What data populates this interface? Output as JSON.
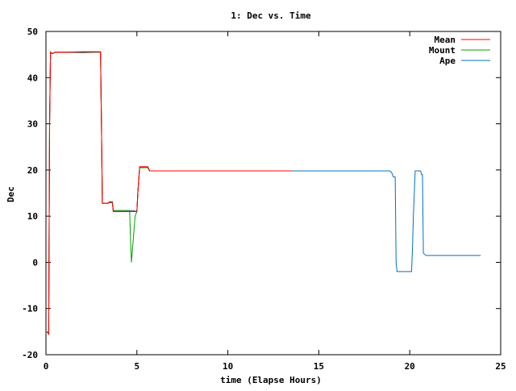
{
  "chart_data": {
    "type": "line",
    "title": "1: Dec vs. Time",
    "xlabel": "time (Elapse Hours)",
    "ylabel": "Dec",
    "xlim": [
      0,
      25
    ],
    "ylim": [
      -20,
      50
    ],
    "xticks": [
      0,
      5,
      10,
      15,
      20,
      25
    ],
    "yticks": [
      -20,
      -10,
      0,
      10,
      20,
      30,
      40,
      50
    ],
    "grid": false,
    "legend_position": "top-right",
    "series": [
      {
        "name": "Mean",
        "color": "#ff0000",
        "points": [
          [
            0.05,
            -15
          ],
          [
            0.15,
            -15.5
          ],
          [
            0.2,
            30
          ],
          [
            0.25,
            45.5
          ],
          [
            0.35,
            45.2
          ],
          [
            0.5,
            45.5
          ],
          [
            1,
            45.5
          ],
          [
            2,
            45.6
          ],
          [
            2.9,
            45.6
          ],
          [
            3.0,
            45.6
          ],
          [
            3.05,
            30
          ],
          [
            3.1,
            12.8
          ],
          [
            3.4,
            12.8
          ],
          [
            3.5,
            13.1
          ],
          [
            3.65,
            13.1
          ],
          [
            3.7,
            11
          ],
          [
            4.8,
            11
          ],
          [
            5.0,
            11
          ],
          [
            5.05,
            15
          ],
          [
            5.15,
            20.7
          ],
          [
            5.6,
            20.7
          ],
          [
            5.7,
            19.8
          ],
          [
            13.5,
            19.8
          ]
        ]
      },
      {
        "name": "Mount",
        "color": "#00a000",
        "points": [
          [
            0.05,
            -15
          ],
          [
            0.15,
            -15.5
          ],
          [
            0.2,
            30
          ],
          [
            0.25,
            45.5
          ],
          [
            0.35,
            45.2
          ],
          [
            0.5,
            45.5
          ],
          [
            1,
            45.5
          ],
          [
            2,
            45.5
          ],
          [
            2.9,
            45.5
          ],
          [
            3.0,
            45.5
          ],
          [
            3.05,
            30
          ],
          [
            3.1,
            12.8
          ],
          [
            3.4,
            12.8
          ],
          [
            3.5,
            13
          ],
          [
            3.65,
            13
          ],
          [
            3.7,
            11.2
          ],
          [
            4.6,
            11.2
          ],
          [
            4.65,
            5
          ],
          [
            4.7,
            0
          ],
          [
            4.8,
            5
          ],
          [
            4.9,
            10
          ],
          [
            5.0,
            11
          ],
          [
            5.05,
            15
          ],
          [
            5.15,
            20.5
          ],
          [
            5.6,
            20.5
          ],
          [
            5.7,
            19.8
          ],
          [
            13.5,
            19.8
          ]
        ]
      },
      {
        "name": "Ape",
        "color": "#0070c0",
        "points": [
          [
            0.05,
            -15
          ],
          [
            0.15,
            -15.5
          ],
          [
            0.2,
            30
          ],
          [
            0.25,
            45.5
          ],
          [
            0.35,
            45.2
          ],
          [
            0.5,
            45.5
          ],
          [
            1,
            45.5
          ],
          [
            2,
            45.4
          ],
          [
            2.9,
            45.5
          ],
          [
            3.0,
            45.5
          ],
          [
            3.05,
            30
          ],
          [
            3.1,
            12.8
          ],
          [
            3.4,
            12.8
          ],
          [
            3.5,
            12.9
          ],
          [
            3.65,
            12.9
          ],
          [
            3.7,
            11.2
          ],
          [
            4.8,
            11.2
          ],
          [
            5.0,
            11
          ],
          [
            5.05,
            15
          ],
          [
            5.15,
            20.5
          ],
          [
            5.6,
            20.5
          ],
          [
            5.7,
            19.8
          ],
          [
            18.9,
            19.8
          ],
          [
            19.0,
            19.5
          ],
          [
            19.1,
            18.5
          ],
          [
            19.2,
            18.5
          ],
          [
            19.25,
            0
          ],
          [
            19.3,
            -2
          ],
          [
            20.1,
            -2
          ],
          [
            20.15,
            3
          ],
          [
            20.2,
            10
          ],
          [
            20.3,
            19.8
          ],
          [
            20.6,
            19.8
          ],
          [
            20.65,
            19
          ],
          [
            20.7,
            19
          ],
          [
            20.75,
            2
          ],
          [
            20.8,
            1.8
          ],
          [
            20.9,
            1.5
          ],
          [
            23.9,
            1.5
          ]
        ]
      }
    ]
  }
}
